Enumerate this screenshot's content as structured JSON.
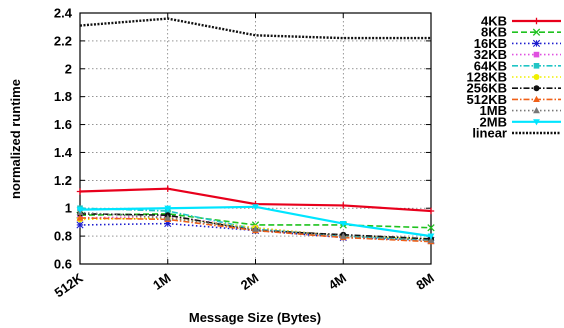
{
  "chart_data": {
    "type": "line",
    "title": "",
    "xlabel": "Message Size (Bytes)",
    "ylabel": "normalized runtime",
    "categories": [
      "512K",
      "1M",
      "2M",
      "4M",
      "8M"
    ],
    "ylim": [
      0.6,
      2.4
    ],
    "yticks": [
      "0.6",
      "0.8",
      "1",
      "1.2",
      "1.4",
      "1.6",
      "1.8",
      "2",
      "2.2",
      "2.4"
    ],
    "grid": true,
    "legend_position": "right",
    "series": [
      {
        "name": "4KB",
        "color": "#e8001c",
        "dash": "solid",
        "marker": "plus",
        "values": [
          1.12,
          1.14,
          1.03,
          1.02,
          0.98
        ]
      },
      {
        "name": "8KB",
        "color": "#1fc21f",
        "dash": "dashed",
        "marker": "x",
        "values": [
          0.95,
          0.96,
          0.88,
          0.88,
          0.86
        ]
      },
      {
        "name": "16KB",
        "color": "#1d1dcf",
        "dash": "dotted",
        "marker": "star",
        "values": [
          0.88,
          0.89,
          0.84,
          0.79,
          0.77
        ]
      },
      {
        "name": "32KB",
        "color": "#e050e0",
        "dash": "dotted",
        "marker": "square",
        "values": [
          0.93,
          0.94,
          0.86,
          0.8,
          0.77
        ]
      },
      {
        "name": "64KB",
        "color": "#21c5c5",
        "dash": "dashdot",
        "marker": "square",
        "values": [
          1.0,
          0.98,
          0.85,
          0.8,
          0.77
        ]
      },
      {
        "name": "128KB",
        "color": "#f0f000",
        "dash": "dotted",
        "marker": "circle",
        "values": [
          0.92,
          0.93,
          0.86,
          0.8,
          0.78
        ]
      },
      {
        "name": "256KB",
        "color": "#111111",
        "dash": "dashdot",
        "marker": "circle",
        "values": [
          0.96,
          0.95,
          0.84,
          0.81,
          0.78
        ]
      },
      {
        "name": "512KB",
        "color": "#f06018",
        "dash": "dashdot",
        "marker": "triangle",
        "values": [
          0.93,
          0.92,
          0.84,
          0.79,
          0.76
        ]
      },
      {
        "name": "1MB",
        "color": "#777777",
        "dash": "dotted",
        "marker": "triangle",
        "values": [
          0.97,
          0.93,
          0.85,
          0.8,
          0.77
        ]
      },
      {
        "name": "2MB",
        "color": "#00e5ff",
        "dash": "solid",
        "marker": "tridown",
        "values": [
          0.99,
          1.0,
          1.01,
          0.89,
          0.8
        ]
      },
      {
        "name": "linear",
        "color": "#111111",
        "dash": "denseDot",
        "marker": "none",
        "values": [
          2.31,
          2.36,
          2.24,
          2.22,
          2.22
        ]
      }
    ]
  }
}
